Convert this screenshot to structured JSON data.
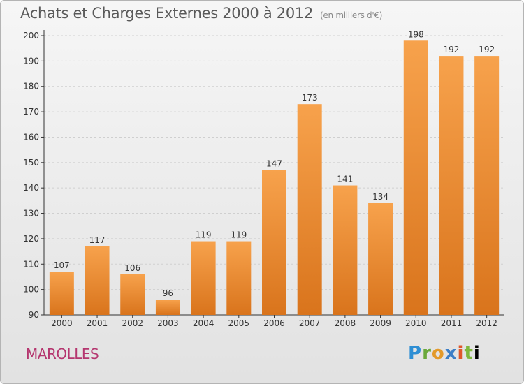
{
  "header": {
    "title": "Achats et Charges Externes 2000 à 2012",
    "unit": "(en milliers d'€)"
  },
  "footer": {
    "place": "MAROLLES",
    "logo": "Proxiti",
    "logo_letters": [
      "P",
      "r",
      "o",
      "x",
      "i",
      "t",
      "i"
    ]
  },
  "colors": {
    "bar_light": "#f7a24c",
    "bar_dark": "#d9741c",
    "grid": "#cfcfcf",
    "axis": "#333333"
  },
  "chart_data": {
    "type": "bar",
    "categories": [
      "2000",
      "2001",
      "2002",
      "2003",
      "2004",
      "2005",
      "2006",
      "2007",
      "2008",
      "2009",
      "2010",
      "2011",
      "2012"
    ],
    "values": [
      107,
      117,
      106,
      96,
      119,
      119,
      147,
      173,
      141,
      134,
      198,
      192,
      192
    ],
    "title": "Achats et Charges Externes 2000 à 2012",
    "subtitle": "(en milliers d'€)",
    "xlabel": "",
    "ylabel": "",
    "ylim": [
      90,
      200
    ],
    "yticks": [
      90,
      100,
      110,
      120,
      130,
      140,
      150,
      160,
      170,
      180,
      190,
      200
    ],
    "grid": true,
    "data_labels": true
  }
}
